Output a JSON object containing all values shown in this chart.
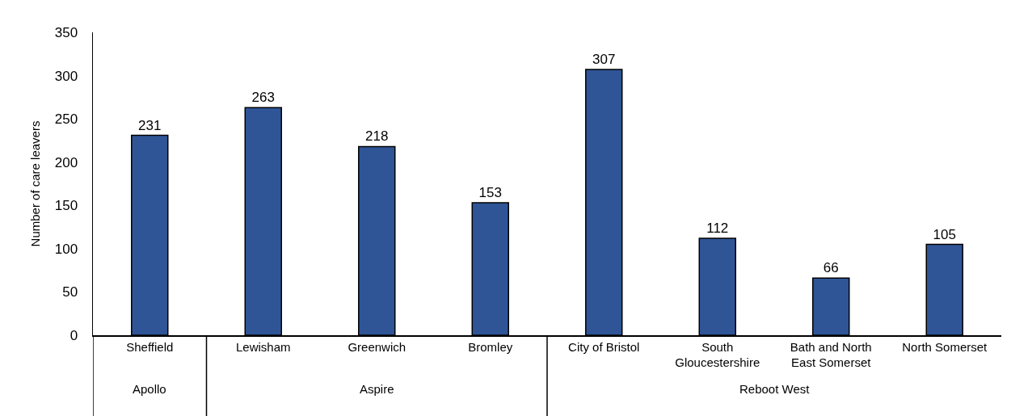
{
  "chart_data": {
    "type": "bar",
    "ylabel": "Number of care leavers",
    "categories": [
      "Sheffield",
      "Lewisham",
      "Greenwich",
      "Bromley",
      "City of Bristol",
      "South Gloucestershire",
      "Bath and North East Somerset",
      "North Somerset"
    ],
    "values": [
      231,
      263,
      218,
      153,
      307,
      112,
      66,
      105
    ],
    "color": "#2f5597",
    "data_labels": true,
    "ylim": [
      0,
      350
    ],
    "yticks": [
      0,
      50,
      100,
      150,
      200,
      250,
      300,
      350
    ],
    "annotations": [
      "Apollo",
      "Aspire",
      "Reboot West"
    ]
  }
}
